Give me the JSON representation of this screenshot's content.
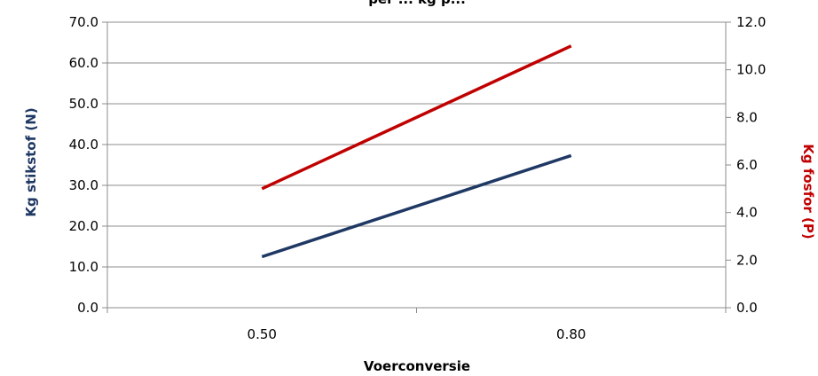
{
  "chart_data": {
    "type": "line",
    "title": "per ... kg p...",
    "xlabel": "Voerconversie",
    "ylabel_left": "Kg stikstof (N)",
    "ylabel_right": "Kg fosfor (P)",
    "categories": [
      "0.50",
      "0.80"
    ],
    "ylim_left": [
      0,
      70
    ],
    "ylim_right": [
      0,
      12
    ],
    "yticks_left": [
      "0.0",
      "10.0",
      "20.0",
      "30.0",
      "40.0",
      "50.0",
      "60.0",
      "70.0"
    ],
    "yticks_right": [
      "0.0",
      "2.0",
      "4.0",
      "6.0",
      "8.0",
      "10.0",
      "12.0"
    ],
    "grid": true,
    "series": [
      {
        "name": "Kg stikstof (N)",
        "axis": "left",
        "values": [
          12.5,
          37.3
        ],
        "color": "#1f3864"
      },
      {
        "name": "Kg fosfor (P)",
        "axis": "right",
        "values": [
          5.0,
          11.0
        ],
        "color": "#c00000"
      }
    ],
    "ylabel_left_color": "#1f3864",
    "ylabel_right_color": "#c00000"
  }
}
